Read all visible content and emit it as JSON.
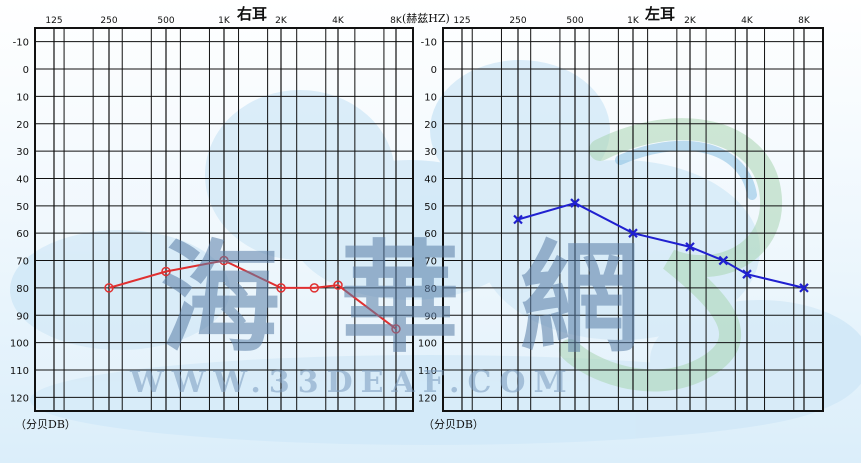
{
  "chart_data": [
    {
      "type": "line",
      "title": "右耳",
      "categories": [
        "125",
        "250",
        "500",
        "1K",
        "2K",
        "4K",
        "8K"
      ],
      "x": [
        "250",
        "500",
        "1K",
        "2K",
        "3K",
        "4K",
        "8K"
      ],
      "series": [
        {
          "values": [
            80,
            74,
            70,
            80,
            80,
            79,
            95
          ],
          "marker": "circle",
          "color": "#e03030"
        }
      ],
      "yticks": [
        "-10",
        "0",
        "10",
        "20",
        "30",
        "40",
        "50",
        "60",
        "70",
        "80",
        "90",
        "100",
        "110",
        "120"
      ],
      "ylim": [
        -15,
        125
      ],
      "y_inverted": true,
      "ylabel": "（分贝DB）",
      "grid": true
    },
    {
      "type": "line",
      "title": "左耳",
      "categories": [
        "125",
        "250",
        "500",
        "1K",
        "2K",
        "4K",
        "8K"
      ],
      "x": [
        "250",
        "500",
        "1K",
        "2K",
        "3K",
        "4K",
        "8K"
      ],
      "series": [
        {
          "values": [
            55,
            49,
            60,
            65,
            70,
            75,
            80
          ],
          "marker": "cross",
          "color": "#2020d0"
        }
      ],
      "yticks": [
        "-10",
        "0",
        "10",
        "20",
        "30",
        "40",
        "50",
        "60",
        "70",
        "80",
        "90",
        "100",
        "110",
        "120"
      ],
      "ylim": [
        -15,
        125
      ],
      "y_inverted": true,
      "ylabel": "（分贝DB）",
      "grid": true
    }
  ],
  "header": {
    "unit_label": "(赫兹HZ)"
  },
  "watermark": {
    "logo_text": "海華網",
    "url_text": "WWW.33DEAF.COM"
  }
}
